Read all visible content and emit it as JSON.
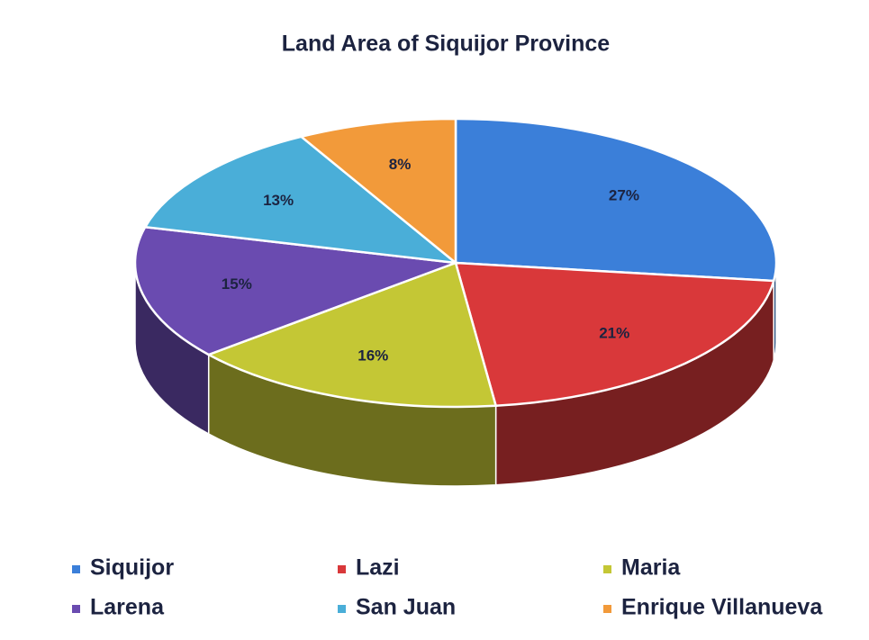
{
  "chart_data": {
    "type": "pie",
    "title": "Land Area of Siquijor Province",
    "categories": [
      "Siquijor",
      "Lazi",
      "Maria",
      "Larena",
      "San Juan",
      "Enrique Villanueva"
    ],
    "values": [
      27,
      21,
      16,
      15,
      13,
      8
    ],
    "value_labels": [
      "27%",
      "21%",
      "16%",
      "15%",
      "13%",
      "8%"
    ],
    "colors": [
      "#3b7fd9",
      "#d9383a",
      "#c4c735",
      "#6a4bb0",
      "#4aaed8",
      "#f29a3a"
    ],
    "legend": "bottom"
  }
}
